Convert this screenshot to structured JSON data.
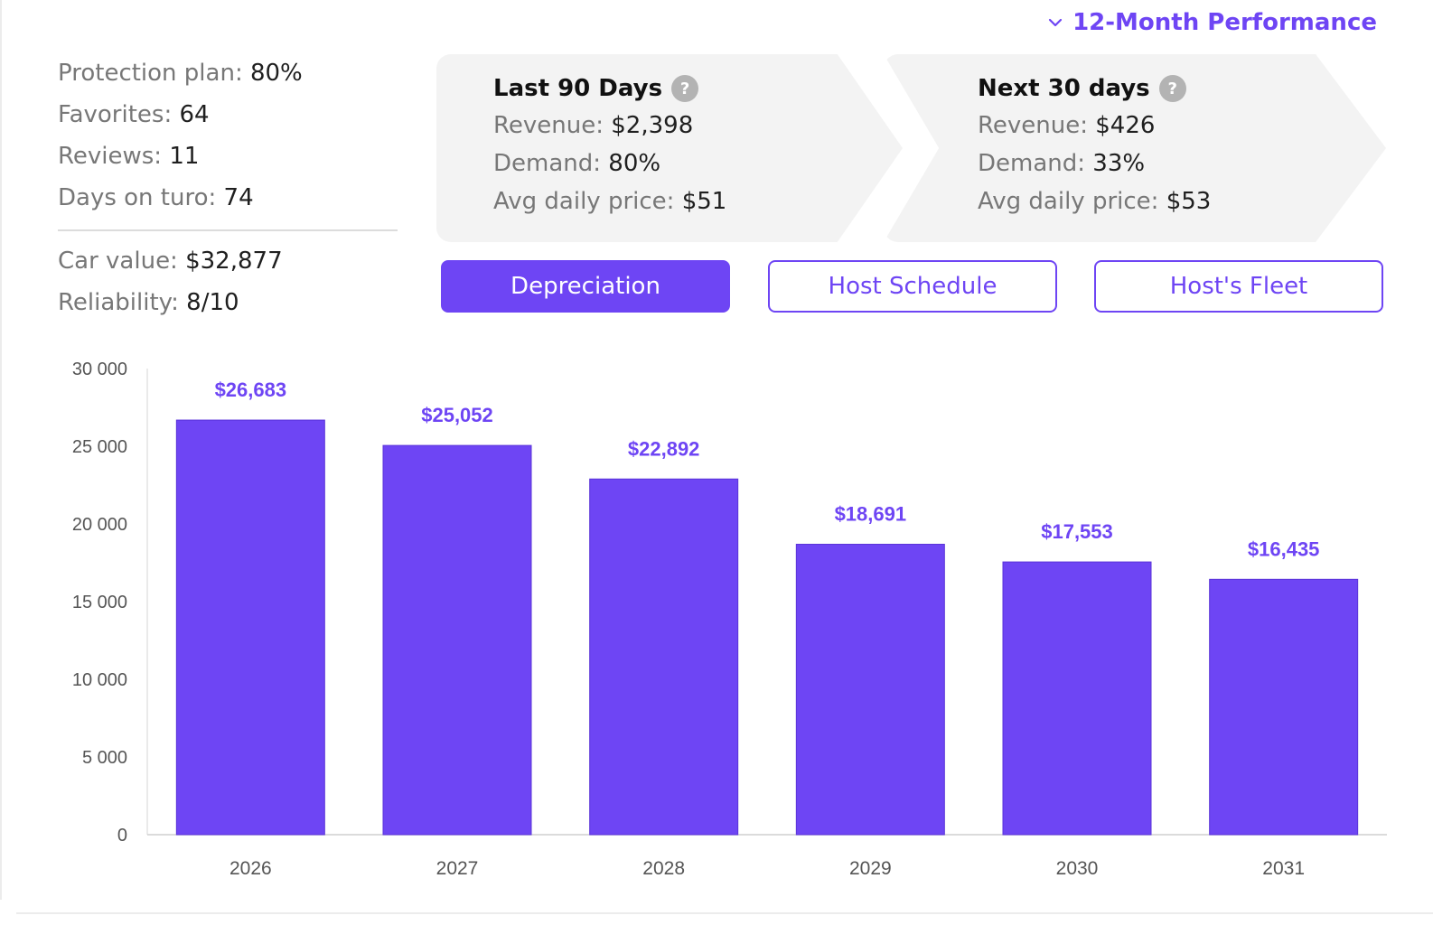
{
  "header": {
    "performance_toggle": "12-Month Performance"
  },
  "stats": [
    {
      "label": "Protection plan:",
      "value": "80%"
    },
    {
      "label": "Favorites:",
      "value": "64"
    },
    {
      "label": "Reviews:",
      "value": "11"
    },
    {
      "label": "Days on turo:",
      "value": "74"
    }
  ],
  "stats2": [
    {
      "label": "Car value:",
      "value": "$32,877"
    },
    {
      "label": "Reliability:",
      "value": "8/10"
    }
  ],
  "last90": {
    "title": "Last 90 Days",
    "rows": [
      {
        "label": "Revenue:",
        "value": "$2,398"
      },
      {
        "label": "Demand:",
        "value": "80%"
      },
      {
        "label": "Avg daily price:",
        "value": "$51"
      }
    ]
  },
  "next30": {
    "title": "Next 30 days",
    "rows": [
      {
        "label": "Revenue:",
        "value": "$426"
      },
      {
        "label": "Demand:",
        "value": "33%"
      },
      {
        "label": "Avg daily price:",
        "value": "$53"
      }
    ]
  },
  "tabs": {
    "depreciation": "Depreciation",
    "host_schedule": "Host Schedule",
    "hosts_fleet": "Host's Fleet"
  },
  "icons": {
    "help": "?",
    "chevron": "chevron-down-icon"
  },
  "colors": {
    "accent": "#6e45f4",
    "bar": "#6e45f4",
    "card_bg": "#f3f3f3",
    "muted_text": "#777777"
  },
  "chart_data": {
    "type": "bar",
    "categories": [
      "2026",
      "2027",
      "2028",
      "2029",
      "2030",
      "2031"
    ],
    "values": [
      26683,
      25052,
      22892,
      18691,
      17553,
      16435
    ],
    "data_labels": [
      "$26,683",
      "$25,052",
      "$22,892",
      "$18,691",
      "$17,553",
      "$16,435"
    ],
    "ylim": [
      0,
      30000
    ],
    "yticks": [
      0,
      5000,
      10000,
      15000,
      20000,
      25000,
      30000
    ],
    "ytick_labels": [
      "0",
      "5 000",
      "10 000",
      "15 000",
      "20 000",
      "25 000",
      "30 000"
    ],
    "grid": false,
    "legend": false
  }
}
